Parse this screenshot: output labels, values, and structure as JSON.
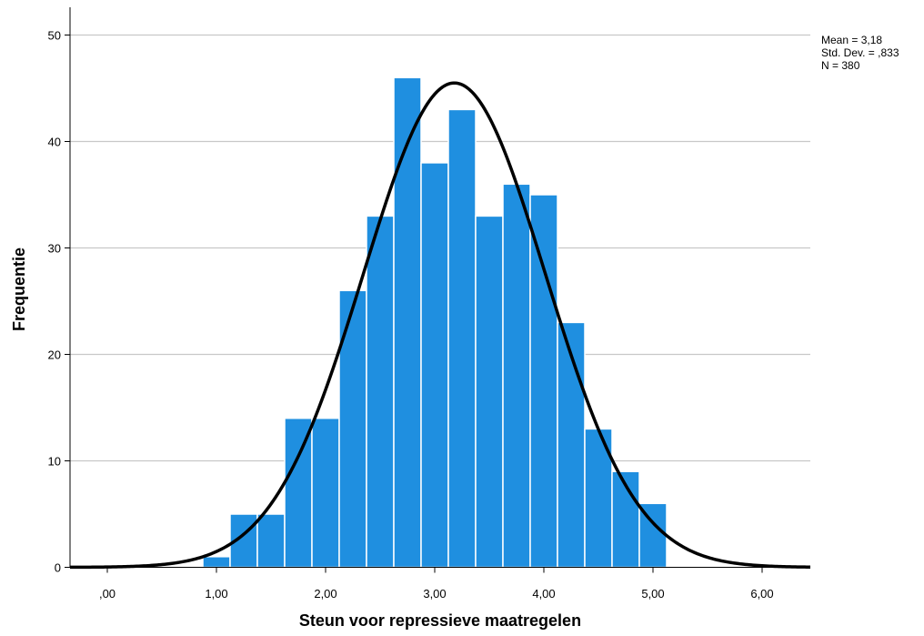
{
  "chart_data": {
    "type": "bar",
    "subtype": "histogram",
    "xlabel": "Steun voor repressieve maatregelen",
    "ylabel": "Frequentie",
    "xlim": [
      -0.4,
      6.4
    ],
    "ylim": [
      0,
      50
    ],
    "x_ticks": [
      0,
      1,
      2,
      3,
      4,
      5,
      6
    ],
    "x_tick_labels": [
      ",00",
      "1,00",
      "2,00",
      "3,00",
      "4,00",
      "5,00",
      "6,00"
    ],
    "y_ticks": [
      0,
      10,
      20,
      30,
      40,
      50
    ],
    "y_tick_labels": [
      "0",
      "10",
      "20",
      "30",
      "40",
      "50"
    ],
    "bin_width": 0.25,
    "bin_starts": [
      0.875,
      1.125,
      1.375,
      1.625,
      1.875,
      2.125,
      2.375,
      2.625,
      2.875,
      3.125,
      3.375,
      3.625,
      3.875,
      4.125,
      4.375,
      4.625,
      4.875
    ],
    "values": [
      1,
      5,
      5,
      14,
      14,
      26,
      33,
      46,
      38,
      43,
      33,
      36,
      35,
      23,
      13,
      9,
      6
    ],
    "bar_color": "#1f8fe0",
    "grid": "horizontal",
    "normal_curve": {
      "mean": 3.18,
      "std": 0.833,
      "n": 380,
      "color": "#000000"
    },
    "stats": {
      "mean_label": "Mean = 3,18",
      "std_label": "Std. Dev. = ,833",
      "n_label": "N = 380"
    }
  }
}
